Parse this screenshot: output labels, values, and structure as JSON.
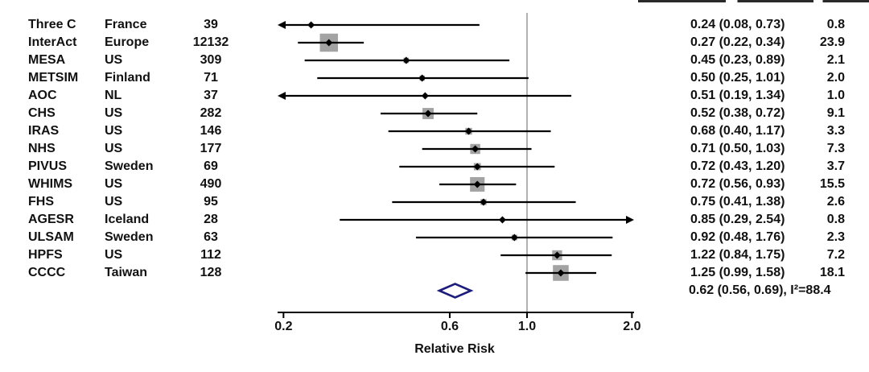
{
  "chart_data": {
    "type": "forest",
    "xlabel": "Relative Risk",
    "x_scale": "log10",
    "x_ticks": [
      0.2,
      0.6,
      1.0,
      2.0
    ],
    "x_tick_labels": [
      "0.2",
      "0.6",
      "1.0",
      "2.0"
    ],
    "ref_line": 1.0,
    "studies": [
      {
        "study": "Three C",
        "location": "France",
        "n": "39",
        "rr": 0.24,
        "lo": 0.08,
        "hi": 0.73,
        "rr_ci": "0.24 (0.08, 0.73)",
        "weight": 0.8,
        "weight_label": "0.8"
      },
      {
        "study": "InterAct",
        "location": "Europe",
        "n": "12132",
        "rr": 0.27,
        "lo": 0.22,
        "hi": 0.34,
        "rr_ci": "0.27 (0.22, 0.34)",
        "weight": 23.9,
        "weight_label": "23.9"
      },
      {
        "study": "MESA",
        "location": "US",
        "n": "309",
        "rr": 0.45,
        "lo": 0.23,
        "hi": 0.89,
        "rr_ci": "0.45 (0.23, 0.89)",
        "weight": 2.1,
        "weight_label": "2.1"
      },
      {
        "study": "METSIM",
        "location": "Finland",
        "n": "71",
        "rr": 0.5,
        "lo": 0.25,
        "hi": 1.01,
        "rr_ci": "0.50 (0.25, 1.01)",
        "weight": 2.0,
        "weight_label": "2.0"
      },
      {
        "study": "AOC",
        "location": "NL",
        "n": "37",
        "rr": 0.51,
        "lo": 0.19,
        "hi": 1.34,
        "rr_ci": "0.51 (0.19, 1.34)",
        "weight": 1.0,
        "weight_label": "1.0"
      },
      {
        "study": "CHS",
        "location": "US",
        "n": "282",
        "rr": 0.52,
        "lo": 0.38,
        "hi": 0.72,
        "rr_ci": "0.52 (0.38, 0.72)",
        "weight": 9.1,
        "weight_label": "9.1"
      },
      {
        "study": "IRAS",
        "location": "US",
        "n": "146",
        "rr": 0.68,
        "lo": 0.4,
        "hi": 1.17,
        "rr_ci": "0.68 (0.40, 1.17)",
        "weight": 3.3,
        "weight_label": "3.3"
      },
      {
        "study": "NHS",
        "location": "US",
        "n": "177",
        "rr": 0.71,
        "lo": 0.5,
        "hi": 1.03,
        "rr_ci": "0.71 (0.50, 1.03)",
        "weight": 7.3,
        "weight_label": "7.3"
      },
      {
        "study": "PIVUS",
        "location": "Sweden",
        "n": "69",
        "rr": 0.72,
        "lo": 0.43,
        "hi": 1.2,
        "rr_ci": "0.72 (0.43, 1.20)",
        "weight": 3.7,
        "weight_label": "3.7"
      },
      {
        "study": "WHIMS",
        "location": "US",
        "n": "490",
        "rr": 0.72,
        "lo": 0.56,
        "hi": 0.93,
        "rr_ci": "0.72 (0.56, 0.93)",
        "weight": 15.5,
        "weight_label": "15.5"
      },
      {
        "study": "FHS",
        "location": "US",
        "n": "95",
        "rr": 0.75,
        "lo": 0.41,
        "hi": 1.38,
        "rr_ci": "0.75 (0.41, 1.38)",
        "weight": 2.6,
        "weight_label": "2.6"
      },
      {
        "study": "AGESR",
        "location": "Iceland",
        "n": "28",
        "rr": 0.85,
        "lo": 0.29,
        "hi": 2.54,
        "rr_ci": "0.85 (0.29, 2.54)",
        "weight": 0.8,
        "weight_label": "0.8"
      },
      {
        "study": "ULSAM",
        "location": "Sweden",
        "n": "63",
        "rr": 0.92,
        "lo": 0.48,
        "hi": 1.76,
        "rr_ci": "0.92 (0.48, 1.76)",
        "weight": 2.3,
        "weight_label": "2.3"
      },
      {
        "study": "HPFS",
        "location": "US",
        "n": "112",
        "rr": 1.22,
        "lo": 0.84,
        "hi": 1.75,
        "rr_ci": "1.22 (0.84, 1.75)",
        "weight": 7.2,
        "weight_label": "7.2"
      },
      {
        "study": "CCCC",
        "location": "Taiwan",
        "n": "128",
        "rr": 1.25,
        "lo": 0.99,
        "hi": 1.58,
        "rr_ci": "1.25 (0.99, 1.58)",
        "weight": 18.1,
        "weight_label": "18.1"
      }
    ],
    "summary": {
      "rr": 0.62,
      "lo": 0.56,
      "hi": 0.69,
      "label": "0.62 (0.56, 0.69), I²=88.4",
      "i_squared": "88.4"
    }
  },
  "colors": {
    "text": "#111111",
    "ci_line": "#000000",
    "marker": "#000000",
    "weight_box": "#a3a3a3",
    "diamond_border": "#1c1c7d",
    "diamond_fill": "#ffffff",
    "ref_line": "#999999",
    "axis": "#000000"
  }
}
